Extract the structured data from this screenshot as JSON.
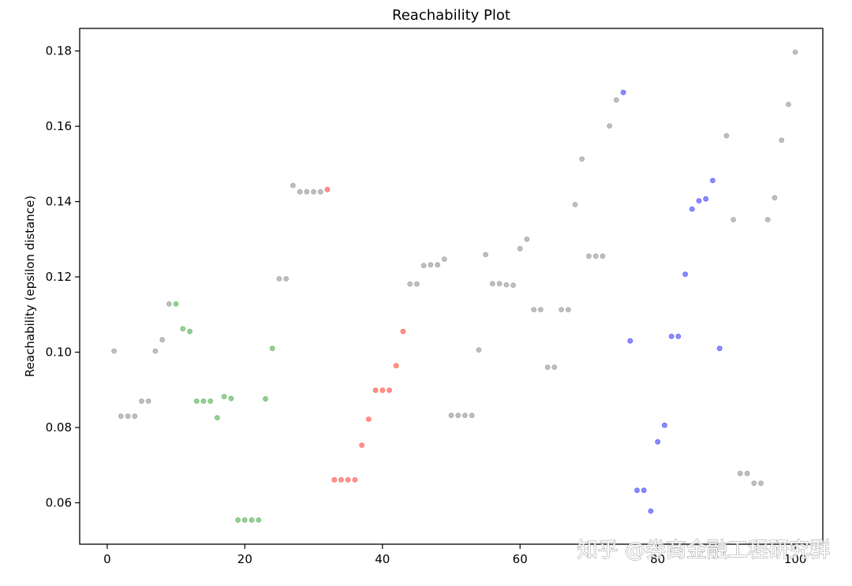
{
  "chart_data": {
    "type": "scatter",
    "title": "Reachability Plot",
    "xlabel": "",
    "ylabel": "Reachability (epsilon distance)",
    "xlim": [
      -4,
      104
    ],
    "ylim": [
      0.049,
      0.186
    ],
    "xticks": [
      0,
      20,
      40,
      60,
      80,
      100
    ],
    "yticks": [
      0.06,
      0.08,
      0.1,
      0.12,
      0.14,
      0.16,
      0.18
    ],
    "ytick_labels": [
      "0.06",
      "0.08",
      "0.10",
      "0.12",
      "0.14",
      "0.16",
      "0.18"
    ],
    "grid": false,
    "series": [
      {
        "color": "#808080",
        "points": [
          [
            1,
            0.1003
          ],
          [
            2,
            0.083
          ],
          [
            3,
            0.083
          ],
          [
            4,
            0.083
          ],
          [
            5,
            0.087
          ],
          [
            6,
            0.087
          ],
          [
            7,
            0.1003
          ],
          [
            8,
            0.1033
          ],
          [
            9,
            0.1128
          ],
          [
            25,
            0.1195
          ],
          [
            26,
            0.1195
          ],
          [
            27,
            0.1443
          ],
          [
            28,
            0.1426
          ],
          [
            29,
            0.1426
          ],
          [
            30,
            0.1426
          ],
          [
            31,
            0.1426
          ],
          [
            44,
            0.1181
          ],
          [
            45,
            0.1181
          ],
          [
            46,
            0.123
          ],
          [
            47,
            0.1232
          ],
          [
            48,
            0.1232
          ],
          [
            49,
            0.1247
          ],
          [
            50,
            0.0832
          ],
          [
            51,
            0.0832
          ],
          [
            52,
            0.0832
          ],
          [
            53,
            0.0832
          ],
          [
            54,
            0.1006
          ],
          [
            55,
            0.1259
          ],
          [
            56,
            0.1182
          ],
          [
            57,
            0.1182
          ],
          [
            58,
            0.1179
          ],
          [
            59,
            0.1178
          ],
          [
            60,
            0.1275
          ],
          [
            61,
            0.13
          ],
          [
            62,
            0.1113
          ],
          [
            63,
            0.1113
          ],
          [
            64,
            0.096
          ],
          [
            65,
            0.096
          ],
          [
            66,
            0.1113
          ],
          [
            67,
            0.1113
          ],
          [
            68,
            0.1392
          ],
          [
            69,
            0.1513
          ],
          [
            70,
            0.1255
          ],
          [
            71,
            0.1255
          ],
          [
            72,
            0.1255
          ],
          [
            73,
            0.1601
          ],
          [
            74,
            0.167
          ],
          [
            90,
            0.1575
          ],
          [
            91,
            0.1352
          ],
          [
            92,
            0.0678
          ],
          [
            93,
            0.0678
          ],
          [
            94,
            0.0652
          ],
          [
            95,
            0.0652
          ],
          [
            96,
            0.1352
          ],
          [
            97,
            0.141
          ],
          [
            98,
            0.1563
          ],
          [
            99,
            0.1658
          ],
          [
            100,
            0.1797
          ]
        ]
      },
      {
        "color": "#2ca02c",
        "points": [
          [
            10,
            0.1128
          ],
          [
            11,
            0.1062
          ],
          [
            12,
            0.1055
          ],
          [
            13,
            0.087
          ],
          [
            14,
            0.087
          ],
          [
            15,
            0.087
          ],
          [
            16,
            0.0826
          ],
          [
            17,
            0.0882
          ],
          [
            18,
            0.0877
          ],
          [
            19,
            0.0554
          ],
          [
            20,
            0.0554
          ],
          [
            21,
            0.0554
          ],
          [
            22,
            0.0554
          ],
          [
            23,
            0.0876
          ],
          [
            24,
            0.101
          ]
        ]
      },
      {
        "color": "#ff2a1a",
        "points": [
          [
            32,
            0.1432
          ],
          [
            33,
            0.0661
          ],
          [
            34,
            0.0661
          ],
          [
            35,
            0.0661
          ],
          [
            36,
            0.0661
          ],
          [
            37,
            0.0753
          ],
          [
            38,
            0.0822
          ],
          [
            39,
            0.0899
          ],
          [
            40,
            0.0899
          ],
          [
            41,
            0.0899
          ],
          [
            42,
            0.0964
          ],
          [
            43,
            0.1055
          ]
        ]
      },
      {
        "color": "#1a1aff",
        "points": [
          [
            75,
            0.169
          ],
          [
            76,
            0.103
          ],
          [
            77,
            0.0633
          ],
          [
            78,
            0.0633
          ],
          [
            79,
            0.0578
          ],
          [
            80,
            0.0762
          ],
          [
            81,
            0.0806
          ],
          [
            82,
            0.1042
          ],
          [
            83,
            0.1042
          ],
          [
            84,
            0.1207
          ],
          [
            85,
            0.138
          ],
          [
            86,
            0.1402
          ],
          [
            87,
            0.1407
          ],
          [
            88,
            0.1456
          ],
          [
            89,
            0.101
          ]
        ]
      }
    ]
  },
  "watermark": {
    "text": "知乎 @券商金融工程研究群"
  }
}
